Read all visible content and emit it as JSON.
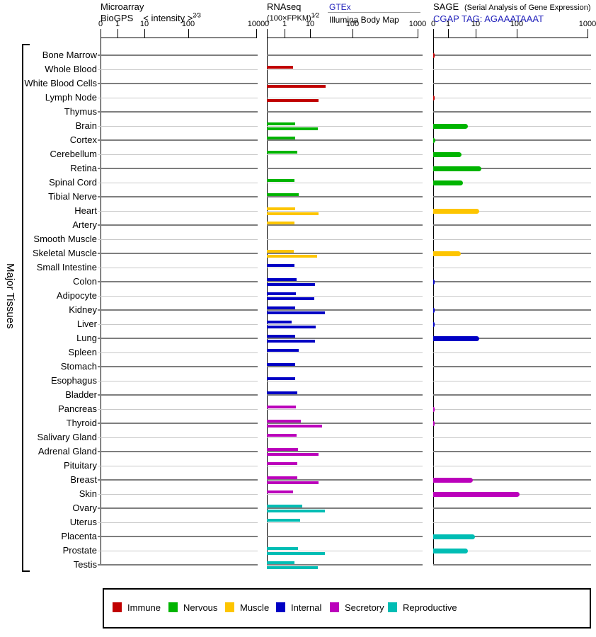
{
  "header": {
    "microarray": {
      "title": "Microarray",
      "source": "BioGPS",
      "scale_label": "< intensity >",
      "scale_exponent": "2⁄3"
    },
    "rnaseq": {
      "title": "RNAseq",
      "scale_label": "(100×FPKM)",
      "scale_exponent": "1⁄2",
      "link": "GTEx",
      "source2": "Illumina Body Map"
    },
    "sage": {
      "title": "SAGE",
      "subtitle": "(Serial Analysis of Gene Expression)",
      "tag": "CGAP TAG: AGAAATAAAT"
    }
  },
  "axis_ticks": [
    "0",
    "1",
    "10",
    "100",
    "1000"
  ],
  "side_label": "Major Tissues",
  "legend": [
    {
      "label": "Immune",
      "color": "#c00000"
    },
    {
      "label": "Nervous",
      "color": "#00b400"
    },
    {
      "label": "Muscle",
      "color": "#fdc500"
    },
    {
      "label": "Internal",
      "color": "#0000c4"
    },
    {
      "label": "Secretory",
      "color": "#bb00bb"
    },
    {
      "label": "Reproductive",
      "color": "#00bdb4"
    }
  ],
  "chart_data": {
    "type": "bar",
    "orientation": "horizontal",
    "panels": [
      {
        "name": "Microarray",
        "source": "BioGPS",
        "scale": "intensity^(2/3)"
      },
      {
        "name": "RNAseq",
        "sources": [
          "GTEx (upper bar)",
          "Illumina Body Map (lower bar)"
        ],
        "scale": "(100×FPKM)^(1/2)"
      },
      {
        "name": "SAGE",
        "source": "CGAP TAG: AGAAATAAAT",
        "scale": "tags per million (log decades)"
      }
    ],
    "x_ticks": [
      0,
      1,
      10,
      100,
      1000
    ],
    "xlim": [
      0,
      1000
    ],
    "series_keys": [
      "microarray",
      "rnaseq_gtex",
      "rnaseq_bodymap",
      "sage"
    ],
    "rows": [
      {
        "tissue": "Bone Marrow",
        "category": "Immune",
        "microarray": null,
        "rnaseq_gtex": null,
        "rnaseq_bodymap": null,
        "sage": 0.1
      },
      {
        "tissue": "Whole Blood",
        "category": "Immune",
        "microarray": null,
        "rnaseq_gtex": 2.2,
        "rnaseq_bodymap": null,
        "sage": null
      },
      {
        "tissue": "White Blood Cells",
        "category": "Immune",
        "microarray": null,
        "rnaseq_gtex": null,
        "rnaseq_bodymap": 23,
        "sage": null
      },
      {
        "tissue": "Lymph Node",
        "category": "Immune",
        "microarray": null,
        "rnaseq_gtex": null,
        "rnaseq_bodymap": 16,
        "sage": 0.1
      },
      {
        "tissue": "Thymus",
        "category": "Immune",
        "microarray": null,
        "rnaseq_gtex": null,
        "rnaseq_bodymap": null,
        "sage": null
      },
      {
        "tissue": "Brain",
        "category": "Nervous",
        "microarray": null,
        "rnaseq_gtex": 2.6,
        "rnaseq_bodymap": 15,
        "sage": 5.2
      },
      {
        "tissue": "Cortex",
        "category": "Nervous",
        "microarray": null,
        "rnaseq_gtex": 2.6,
        "rnaseq_bodymap": null,
        "sage": 0.15
      },
      {
        "tissue": "Cerebellum",
        "category": "Nervous",
        "microarray": null,
        "rnaseq_gtex": 3.2,
        "rnaseq_bodymap": null,
        "sage": 3.1
      },
      {
        "tissue": "Retina",
        "category": "Nervous",
        "microarray": null,
        "rnaseq_gtex": null,
        "rnaseq_bodymap": null,
        "sage": 14
      },
      {
        "tissue": "Spinal Cord",
        "category": "Nervous",
        "microarray": null,
        "rnaseq_gtex": 2.5,
        "rnaseq_bodymap": null,
        "sage": 3.5
      },
      {
        "tissue": "Tibial Nerve",
        "category": "Nervous",
        "microarray": null,
        "rnaseq_gtex": 3.6,
        "rnaseq_bodymap": null,
        "sage": null
      },
      {
        "tissue": "Heart",
        "category": "Muscle",
        "microarray": null,
        "rnaseq_gtex": 2.6,
        "rnaseq_bodymap": 16,
        "sage": 12
      },
      {
        "tissue": "Artery",
        "category": "Muscle",
        "microarray": null,
        "rnaseq_gtex": 2.5,
        "rnaseq_bodymap": null,
        "sage": null
      },
      {
        "tissue": "Smooth Muscle",
        "category": "Muscle",
        "microarray": null,
        "rnaseq_gtex": null,
        "rnaseq_bodymap": null,
        "sage": null
      },
      {
        "tissue": "Skeletal Muscle",
        "category": "Muscle",
        "microarray": null,
        "rnaseq_gtex": 2.3,
        "rnaseq_bodymap": 14.5,
        "sage": 2.9
      },
      {
        "tissue": "Small Intestine",
        "category": "Internal",
        "microarray": null,
        "rnaseq_gtex": 2.5,
        "rnaseq_bodymap": null,
        "sage": null
      },
      {
        "tissue": "Colon",
        "category": "Internal",
        "microarray": null,
        "rnaseq_gtex": 3.0,
        "rnaseq_bodymap": 13,
        "sage": 0.1
      },
      {
        "tissue": "Adipocyte",
        "category": "Internal",
        "microarray": null,
        "rnaseq_gtex": 2.8,
        "rnaseq_bodymap": 12.5,
        "sage": null
      },
      {
        "tissue": "Kidney",
        "category": "Internal",
        "microarray": null,
        "rnaseq_gtex": 2.6,
        "rnaseq_bodymap": 22,
        "sage": 0.1
      },
      {
        "tissue": "Liver",
        "category": "Internal",
        "microarray": null,
        "rnaseq_gtex": 1.9,
        "rnaseq_bodymap": 13.5,
        "sage": 0.1
      },
      {
        "tissue": "Lung",
        "category": "Internal",
        "microarray": null,
        "rnaseq_gtex": 2.6,
        "rnaseq_bodymap": 13,
        "sage": 12
      },
      {
        "tissue": "Spleen",
        "category": "Internal",
        "microarray": null,
        "rnaseq_gtex": 3.6,
        "rnaseq_bodymap": null,
        "sage": null
      },
      {
        "tissue": "Stomach",
        "category": "Internal",
        "microarray": null,
        "rnaseq_gtex": 2.6,
        "rnaseq_bodymap": null,
        "sage": null
      },
      {
        "tissue": "Esophagus",
        "category": "Internal",
        "microarray": null,
        "rnaseq_gtex": 2.6,
        "rnaseq_bodymap": null,
        "sage": null
      },
      {
        "tissue": "Bladder",
        "category": "Internal",
        "microarray": null,
        "rnaseq_gtex": 3.2,
        "rnaseq_bodymap": null,
        "sage": null
      },
      {
        "tissue": "Pancreas",
        "category": "Secretory",
        "microarray": null,
        "rnaseq_gtex": 2.8,
        "rnaseq_bodymap": null,
        "sage": 0.1
      },
      {
        "tissue": "Thyroid",
        "category": "Secretory",
        "microarray": null,
        "rnaseq_gtex": 4.3,
        "rnaseq_bodymap": 19,
        "sage": 0.1
      },
      {
        "tissue": "Salivary Gland",
        "category": "Secretory",
        "microarray": null,
        "rnaseq_gtex": 3.0,
        "rnaseq_bodymap": null,
        "sage": null
      },
      {
        "tissue": "Adrenal Gland",
        "category": "Secretory",
        "microarray": null,
        "rnaseq_gtex": 3.4,
        "rnaseq_bodymap": 16,
        "sage": null
      },
      {
        "tissue": "Pituitary",
        "category": "Secretory",
        "microarray": null,
        "rnaseq_gtex": 3.2,
        "rnaseq_bodymap": null,
        "sage": null
      },
      {
        "tissue": "Breast",
        "category": "Secretory",
        "microarray": null,
        "rnaseq_gtex": 3.2,
        "rnaseq_bodymap": 16,
        "sage": 7.9
      },
      {
        "tissue": "Skin",
        "category": "Secretory",
        "microarray": null,
        "rnaseq_gtex": 2.2,
        "rnaseq_bodymap": null,
        "sage": 110
      },
      {
        "tissue": "Ovary",
        "category": "Reproductive",
        "microarray": null,
        "rnaseq_gtex": 4.8,
        "rnaseq_bodymap": 22,
        "sage": null
      },
      {
        "tissue": "Uterus",
        "category": "Reproductive",
        "microarray": null,
        "rnaseq_gtex": 4.0,
        "rnaseq_bodymap": null,
        "sage": null
      },
      {
        "tissue": "Placenta",
        "category": "Reproductive",
        "microarray": null,
        "rnaseq_gtex": null,
        "rnaseq_bodymap": null,
        "sage": 9.4
      },
      {
        "tissue": "Prostate",
        "category": "Reproductive",
        "microarray": null,
        "rnaseq_gtex": 3.4,
        "rnaseq_bodymap": 22,
        "sage": 5.2
      },
      {
        "tissue": "Testis",
        "category": "Reproductive",
        "microarray": null,
        "rnaseq_gtex": 2.5,
        "rnaseq_bodymap": 15,
        "sage": null
      }
    ]
  }
}
